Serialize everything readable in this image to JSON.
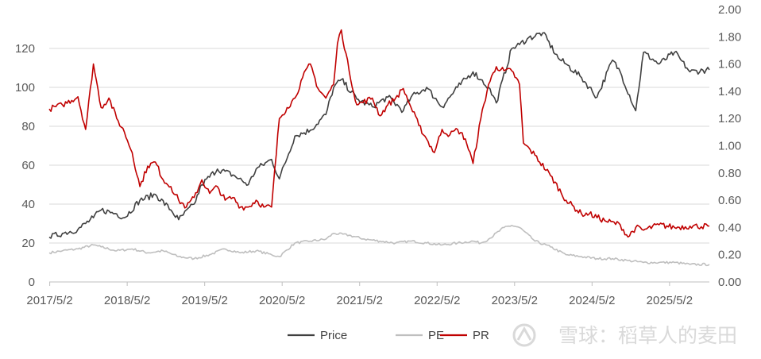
{
  "chart_data": {
    "type": "line",
    "title": "",
    "xlabel": "",
    "ylabel": "",
    "x_ticks": [
      "2017/5/2",
      "2018/5/2",
      "2019/5/2",
      "2020/5/2",
      "2021/5/2",
      "2022/5/2",
      "2023/5/2",
      "2024/5/2",
      "2025/5/2"
    ],
    "x_range": [
      2017.33,
      2025.85
    ],
    "y_left": {
      "ticks": [
        "0",
        "20",
        "40",
        "60",
        "80",
        "100",
        "120"
      ],
      "range": [
        0,
        140
      ]
    },
    "y_right": {
      "ticks": [
        "0.00",
        "0.20",
        "0.40",
        "0.60",
        "0.80",
        "1.00",
        "1.20",
        "1.40",
        "1.60",
        "1.80",
        "2.00"
      ],
      "range": [
        0,
        2.0
      ]
    },
    "grid": "horizontal",
    "legend": {
      "placement": "bottom",
      "entries": [
        "Price",
        "PE",
        "PR"
      ]
    },
    "watermark": "雪球：稻草人的麦田",
    "series": [
      {
        "name": "Price",
        "axis": "left",
        "color": "#404040",
        "x": [
          2017.33,
          2017.5,
          2017.7,
          2017.9,
          2018.0,
          2018.2,
          2018.3,
          2018.5,
          2018.7,
          2018.9,
          2019.0,
          2019.2,
          2019.3,
          2019.5,
          2019.7,
          2019.9,
          2020.0,
          2020.2,
          2020.3,
          2020.5,
          2020.7,
          2020.9,
          2021.0,
          2021.1,
          2021.3,
          2021.5,
          2021.7,
          2021.9,
          2022.0,
          2022.2,
          2022.4,
          2022.6,
          2022.8,
          2022.9,
          2023.0,
          2023.1,
          2023.3,
          2023.4,
          2023.5,
          2023.7,
          2023.9,
          2024.0,
          2024.2,
          2024.4,
          2024.6,
          2024.7,
          2024.9,
          2025.0,
          2025.2,
          2025.4,
          2025.6,
          2025.85
        ],
        "y": [
          23,
          25,
          27,
          33,
          37,
          35,
          33,
          42,
          45,
          37,
          32,
          40,
          50,
          58,
          55,
          50,
          58,
          63,
          53,
          75,
          78,
          86,
          100,
          104,
          94,
          90,
          95,
          88,
          95,
          100,
          90,
          100,
          108,
          104,
          100,
          92,
          120,
          122,
          125,
          128,
          115,
          112,
          105,
          95,
          114,
          108,
          88,
          118,
          112,
          118,
          108,
          109
        ]
      },
      {
        "name": "PE",
        "axis": "left",
        "color": "#bfbfbf",
        "x": [
          2017.33,
          2017.5,
          2017.7,
          2017.9,
          2018.0,
          2018.2,
          2018.4,
          2018.6,
          2018.8,
          2019.0,
          2019.2,
          2019.4,
          2019.6,
          2019.8,
          2020.0,
          2020.2,
          2020.3,
          2020.5,
          2020.7,
          2020.9,
          2021.0,
          2021.2,
          2021.4,
          2021.6,
          2021.8,
          2022.0,
          2022.2,
          2022.4,
          2022.6,
          2022.8,
          2022.9,
          2023.0,
          2023.2,
          2023.3,
          2023.4,
          2023.6,
          2023.8,
          2024.0,
          2024.2,
          2024.4,
          2024.6,
          2024.8,
          2025.0,
          2025.2,
          2025.4,
          2025.6,
          2025.85
        ],
        "y": [
          15,
          16,
          17,
          19,
          18,
          16,
          17,
          15,
          16,
          13,
          12,
          14,
          17,
          15,
          16,
          14,
          13,
          20,
          21,
          22,
          25,
          24,
          22,
          21,
          20,
          21,
          20,
          19,
          20,
          21,
          20,
          22,
          28,
          29,
          28,
          21,
          18,
          14,
          13,
          12,
          12,
          11,
          10,
          10,
          10,
          9,
          9
        ]
      },
      {
        "name": "PR",
        "axis": "right",
        "color": "#c00000",
        "x": [
          2017.33,
          2017.5,
          2017.7,
          2017.8,
          2017.9,
          2018.0,
          2018.1,
          2018.2,
          2018.3,
          2018.4,
          2018.5,
          2018.6,
          2018.7,
          2018.8,
          2018.9,
          2019.0,
          2019.1,
          2019.2,
          2019.3,
          2019.4,
          2019.5,
          2019.6,
          2019.7,
          2019.8,
          2019.9,
          2020.0,
          2020.1,
          2020.2,
          2020.3,
          2020.4,
          2020.5,
          2020.6,
          2020.7,
          2020.8,
          2020.9,
          2021.0,
          2021.05,
          2021.1,
          2021.2,
          2021.3,
          2021.5,
          2021.6,
          2021.7,
          2021.8,
          2021.9,
          2022.0,
          2022.1,
          2022.2,
          2022.3,
          2022.4,
          2022.5,
          2022.6,
          2022.7,
          2022.8,
          2022.9,
          2023.0,
          2023.1,
          2023.2,
          2023.3,
          2023.4,
          2023.45,
          2023.6,
          2023.8,
          2024.0,
          2024.2,
          2024.3,
          2024.5,
          2024.7,
          2024.8,
          2024.9,
          2025.0,
          2025.2,
          2025.4,
          2025.6,
          2025.85
        ],
        "y": [
          1.27,
          1.3,
          1.36,
          1.12,
          1.6,
          1.28,
          1.35,
          1.2,
          1.1,
          0.95,
          0.7,
          0.85,
          0.88,
          0.75,
          0.7,
          0.6,
          0.55,
          0.62,
          0.75,
          0.65,
          0.7,
          0.6,
          0.62,
          0.55,
          0.55,
          0.6,
          0.55,
          0.55,
          1.2,
          1.28,
          1.35,
          1.5,
          1.6,
          1.42,
          1.35,
          1.45,
          1.75,
          1.85,
          1.55,
          1.3,
          1.35,
          1.22,
          1.3,
          1.35,
          1.42,
          1.28,
          1.15,
          1.05,
          0.95,
          1.12,
          1.08,
          1.12,
          1.05,
          0.87,
          1.2,
          1.45,
          1.58,
          1.55,
          1.55,
          1.45,
          1.02,
          0.93,
          0.78,
          0.6,
          0.5,
          0.5,
          0.45,
          0.42,
          0.33,
          0.4,
          0.38,
          0.42,
          0.4,
          0.41,
          0.41
        ]
      }
    ]
  }
}
